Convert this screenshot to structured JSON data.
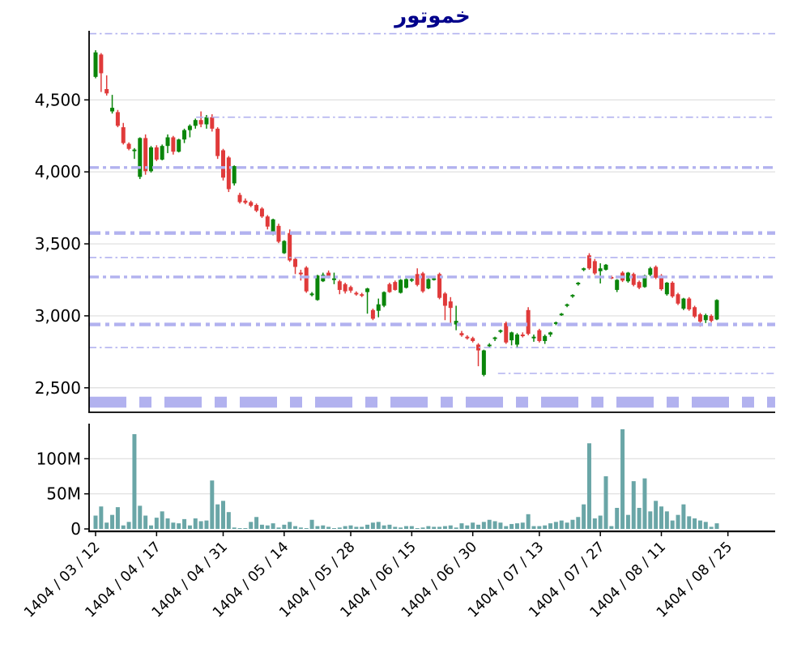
{
  "title": "خموتور",
  "title_color": "#00008b",
  "chart_data": {
    "type": "candlestick",
    "title": "خموتور",
    "legend": "none",
    "grid": "horizontal-light",
    "price_axis": {
      "range": [
        2330,
        4980
      ],
      "ticks": [
        {
          "value": 4500,
          "label": "4,500"
        },
        {
          "value": 4000,
          "label": "4,000"
        },
        {
          "value": 3500,
          "label": "3,500"
        },
        {
          "value": 3000,
          "label": "3,000"
        },
        {
          "value": 2500,
          "label": "2,500"
        }
      ]
    },
    "volume_axis": {
      "range": [
        0,
        150
      ],
      "unit": "M",
      "ticks": [
        {
          "value": 100,
          "label": "100M"
        },
        {
          "value": 50,
          "label": "50M"
        },
        {
          "value": 0,
          "label": "0"
        }
      ]
    },
    "date_ticks": [
      {
        "index": 0,
        "label": "1404 / 03 / 12"
      },
      {
        "index": 11,
        "label": "1404 / 04 / 17"
      },
      {
        "index": 23,
        "label": "1404 / 04 / 31"
      },
      {
        "index": 34,
        "label": "1404 / 05 / 14"
      },
      {
        "index": 46,
        "label": "1404 / 05 / 28"
      },
      {
        "index": 57,
        "label": "1404 / 06 / 15"
      },
      {
        "index": 68,
        "label": "1404 / 06 / 30"
      },
      {
        "index": 80,
        "label": "1404 / 07 / 13"
      },
      {
        "index": 91,
        "label": "1404 / 07 / 27"
      },
      {
        "index": 102,
        "label": "1404 / 08 / 11"
      },
      {
        "index": 114,
        "label": "1404 / 08 / 25"
      }
    ],
    "levels": [
      {
        "value": 4960,
        "weight": "thin",
        "start": 0
      },
      {
        "value": 4380,
        "weight": "thin",
        "start": 0.156
      },
      {
        "value": 4030,
        "weight": "medium",
        "start": 0
      },
      {
        "value": 3575,
        "weight": "thick",
        "start": 0
      },
      {
        "value": 3405,
        "weight": "thin",
        "start": 0
      },
      {
        "value": 3270,
        "weight": "medium",
        "start": 0
      },
      {
        "value": 2940,
        "weight": "thick",
        "start": 0
      },
      {
        "value": 2780,
        "weight": "thin",
        "start": 0
      },
      {
        "value": 2600,
        "weight": "thin",
        "start": 0.596
      },
      {
        "value": 2400,
        "weight": "xthick",
        "start": 0
      }
    ],
    "candles": [
      [
        4660,
        4845,
        4650,
        4830
      ],
      [
        4815,
        4825,
        4555,
        4685
      ],
      [
        4575,
        4670,
        4530,
        4545
      ],
      [
        4420,
        4535,
        4405,
        4445
      ],
      [
        4415,
        4430,
        4310,
        4320
      ],
      [
        4310,
        4340,
        4190,
        4200
      ],
      [
        4195,
        4205,
        4150,
        4160
      ],
      [
        4150,
        4165,
        4090,
        4155
      ],
      [
        3965,
        4240,
        3950,
        4235
      ],
      [
        4235,
        4260,
        3980,
        4005
      ],
      [
        4005,
        4180,
        3995,
        4170
      ],
      [
        4170,
        4185,
        4075,
        4085
      ],
      [
        4085,
        4190,
        4080,
        4180
      ],
      [
        4180,
        4260,
        4130,
        4240
      ],
      [
        4240,
        4250,
        4120,
        4140
      ],
      [
        4140,
        4230,
        4135,
        4225
      ],
      [
        4225,
        4300,
        4200,
        4290
      ],
      [
        4290,
        4330,
        4240,
        4320
      ],
      [
        4320,
        4370,
        4300,
        4360
      ],
      [
        4360,
        4420,
        4310,
        4330
      ],
      [
        4330,
        4395,
        4300,
        4380
      ],
      [
        4380,
        4400,
        4280,
        4300
      ],
      [
        4300,
        4310,
        4090,
        4110
      ],
      [
        4150,
        4160,
        3940,
        3960
      ],
      [
        4100,
        4110,
        3860,
        3880
      ],
      [
        3920,
        4045,
        3905,
        4040
      ],
      [
        3840,
        3855,
        3780,
        3790
      ],
      [
        3800,
        3815,
        3775,
        3785
      ],
      [
        3790,
        3800,
        3755,
        3765
      ],
      [
        3770,
        3780,
        3720,
        3730
      ],
      [
        3745,
        3755,
        3680,
        3690
      ],
      [
        3690,
        3700,
        3600,
        3620
      ],
      [
        3570,
        3675,
        3560,
        3670
      ],
      [
        3625,
        3640,
        3505,
        3515
      ],
      [
        3435,
        3525,
        3430,
        3520
      ],
      [
        3575,
        3600,
        3375,
        3385
      ],
      [
        3395,
        3405,
        3290,
        3340
      ],
      [
        3300,
        3320,
        3245,
        3295
      ],
      [
        3335,
        3345,
        3160,
        3170
      ],
      [
        3150,
        3165,
        3135,
        3155
      ],
      [
        3110,
        3285,
        3105,
        3280
      ],
      [
        3240,
        3300,
        3235,
        3285
      ],
      [
        3300,
        3315,
        3260,
        3270
      ],
      [
        3250,
        3300,
        3220,
        3260
      ],
      [
        3240,
        3250,
        3150,
        3180
      ],
      [
        3220,
        3230,
        3155,
        3170
      ],
      [
        3200,
        3210,
        3160,
        3175
      ],
      [
        3160,
        3170,
        3140,
        3150
      ],
      [
        3150,
        3160,
        3130,
        3145
      ],
      [
        3165,
        3195,
        3015,
        3190
      ],
      [
        3040,
        3050,
        2970,
        2980
      ],
      [
        3035,
        3120,
        2990,
        3080
      ],
      [
        3070,
        3170,
        3060,
        3165
      ],
      [
        3220,
        3230,
        3160,
        3165
      ],
      [
        3235,
        3245,
        3175,
        3180
      ],
      [
        3160,
        3255,
        3155,
        3250
      ],
      [
        3195,
        3260,
        3190,
        3255
      ],
      [
        3245,
        3265,
        3235,
        3255
      ],
      [
        3290,
        3330,
        3205,
        3215
      ],
      [
        3295,
        3305,
        3160,
        3170
      ],
      [
        3190,
        3260,
        3185,
        3255
      ],
      [
        3255,
        3270,
        3245,
        3260
      ],
      [
        3290,
        3300,
        3115,
        3125
      ],
      [
        3155,
        3165,
        2970,
        3070
      ],
      [
        3100,
        3130,
        2945,
        3055
      ],
      [
        2940,
        3070,
        2900,
        2965
      ],
      [
        2880,
        2895,
        2855,
        2865
      ],
      [
        2855,
        2865,
        2835,
        2845
      ],
      [
        2845,
        2855,
        2815,
        2825
      ],
      [
        2800,
        2810,
        2650,
        2760
      ],
      [
        2590,
        2765,
        2580,
        2760
      ],
      [
        2790,
        2810,
        2780,
        2800
      ],
      [
        2840,
        2855,
        2825,
        2850
      ],
      [
        2890,
        2905,
        2880,
        2900
      ],
      [
        2950,
        2960,
        2805,
        2815
      ],
      [
        2830,
        2890,
        2795,
        2885
      ],
      [
        2800,
        2880,
        2775,
        2870
      ],
      [
        2870,
        2885,
        2850,
        2860
      ],
      [
        3040,
        3060,
        2865,
        2875
      ],
      [
        2850,
        2870,
        2820,
        2855
      ],
      [
        2900,
        2910,
        2815,
        2825
      ],
      [
        2825,
        2870,
        2805,
        2860
      ],
      [
        2870,
        2890,
        2855,
        2885
      ],
      [
        2950,
        2960,
        2935,
        2955
      ],
      [
        3010,
        3020,
        3000,
        3015
      ],
      [
        3075,
        3085,
        3060,
        3080
      ],
      [
        3140,
        3150,
        3125,
        3145
      ],
      [
        3220,
        3235,
        3210,
        3230
      ],
      [
        3320,
        3335,
        3310,
        3330
      ],
      [
        3420,
        3435,
        3320,
        3330
      ],
      [
        3380,
        3395,
        3285,
        3295
      ],
      [
        3310,
        3365,
        3225,
        3330
      ],
      [
        3320,
        3360,
        3315,
        3355
      ],
      [
        3270,
        3280,
        3255,
        3265
      ],
      [
        3180,
        3255,
        3165,
        3250
      ],
      [
        3300,
        3310,
        3235,
        3245
      ],
      [
        3240,
        3305,
        3230,
        3300
      ],
      [
        3290,
        3300,
        3205,
        3215
      ],
      [
        3235,
        3245,
        3185,
        3195
      ],
      [
        3200,
        3285,
        3195,
        3280
      ],
      [
        3285,
        3340,
        3275,
        3330
      ],
      [
        3340,
        3350,
        3255,
        3265
      ],
      [
        3280,
        3290,
        3175,
        3185
      ],
      [
        3150,
        3235,
        3140,
        3230
      ],
      [
        3230,
        3240,
        3125,
        3135
      ],
      [
        3150,
        3160,
        3075,
        3085
      ],
      [
        3050,
        3125,
        3040,
        3120
      ],
      [
        3120,
        3130,
        3035,
        3045
      ],
      [
        3060,
        3070,
        2985,
        2995
      ],
      [
        3010,
        3020,
        2925,
        2960
      ],
      [
        2970,
        3015,
        2950,
        3005
      ],
      [
        3000,
        3010,
        2955,
        2965
      ],
      [
        2975,
        3115,
        2970,
        3110
      ]
    ],
    "volumes_millions": [
      19,
      32,
      9,
      20,
      31,
      5,
      10,
      135,
      33,
      19,
      5,
      16,
      25,
      15,
      9,
      8,
      14,
      5,
      15,
      11,
      12,
      69,
      35,
      40,
      24,
      2,
      1,
      1,
      10,
      17,
      6,
      5,
      8,
      2,
      6,
      10,
      4,
      2,
      1,
      13,
      4,
      5,
      3,
      1,
      2,
      4,
      5,
      3,
      3,
      6,
      9,
      10,
      5,
      6,
      3,
      2,
      4,
      4,
      1,
      2,
      4,
      3,
      3,
      4,
      5,
      2,
      8,
      5,
      9,
      6,
      10,
      13,
      11,
      9,
      4,
      7,
      8,
      9,
      21,
      4,
      4,
      5,
      8,
      10,
      12,
      9,
      13,
      17,
      35,
      122,
      15,
      19,
      75,
      4,
      30,
      142,
      20,
      68,
      30,
      72,
      25,
      40,
      32,
      25,
      12,
      20,
      35,
      18,
      15,
      12,
      10,
      3,
      8
    ],
    "colors": {
      "up": "#0a850a",
      "down": "#e03a3a",
      "volume": "#6aa6a7",
      "level": "#b2b2ef",
      "grid": "#dddddd",
      "axis": "#000000"
    }
  }
}
